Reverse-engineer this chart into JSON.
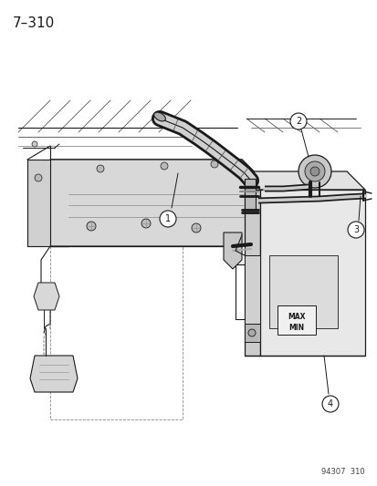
{
  "title_label": "7–310",
  "footer_label": "94307  310",
  "bg_color": "#ffffff",
  "line_color": "#1a1a1a",
  "fig_width": 4.14,
  "fig_height": 5.33,
  "dpi": 100
}
